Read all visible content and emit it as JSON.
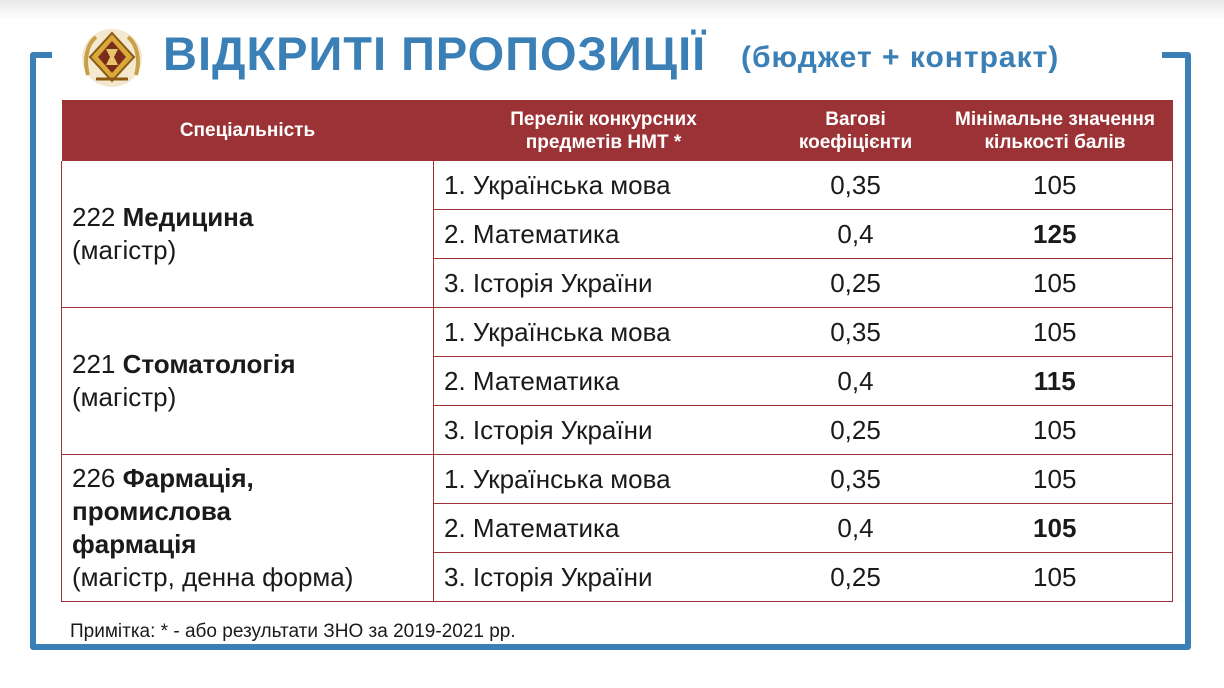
{
  "title": {
    "main": "ВІДКРИТІ ПРОПОЗИЦІЇ",
    "sub": "(бюджет + контракт)"
  },
  "logo_icon": "university-crest-icon",
  "colors": {
    "accent": "#3a7fb6",
    "header_bg": "#9b3336"
  },
  "table": {
    "headers": {
      "specialty": "Спеціальність",
      "subjects_line1": "Перелік конкурсних",
      "subjects_line2": "предметів НМТ *",
      "weights_line1": "Вагові",
      "weights_line2": "коефіцієнти",
      "minscore_line1": "Мінімальне значення",
      "minscore_line2": "кількості балів"
    },
    "groups": [
      {
        "code": "222 ",
        "name": "Медицина",
        "name2": "",
        "name3": "",
        "degree": "(магістр)",
        "rows": [
          {
            "subject": "1. Українська мова",
            "weight": "0,35",
            "min": "105"
          },
          {
            "subject": "2. Математика",
            "weight": "0,4",
            "min": "125"
          },
          {
            "subject": "3. Історія України",
            "weight": "0,25",
            "min": "105"
          }
        ]
      },
      {
        "code": "221 ",
        "name": "Стоматологія",
        "name2": "",
        "name3": "",
        "degree": "(магістр)",
        "rows": [
          {
            "subject": "1. Українська мова",
            "weight": "0,35",
            "min": "105"
          },
          {
            "subject": "2. Математика",
            "weight": "0,4",
            "min": "115"
          },
          {
            "subject": "3. Історія України",
            "weight": "0,25",
            "min": "105"
          }
        ]
      },
      {
        "code": "226 ",
        "name": "Фармація,",
        "name2": "промислова",
        "name3": "фармація",
        "degree": "(магістр, денна форма)",
        "rows": [
          {
            "subject": "1. Українська мова",
            "weight": "0,35",
            "min": "105"
          },
          {
            "subject": "2. Математика",
            "weight": "0,4",
            "min": "105"
          },
          {
            "subject": "3. Історія України",
            "weight": "0,25",
            "min": "105"
          }
        ]
      }
    ]
  },
  "note": "Примітка: * - або результати ЗНО за 2019-2021 рр."
}
